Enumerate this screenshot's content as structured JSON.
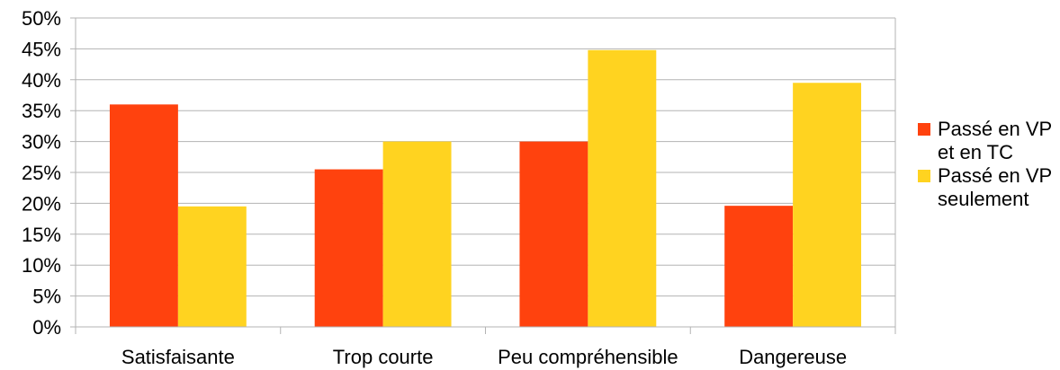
{
  "chart_data": {
    "type": "bar",
    "categories": [
      "Satisfaisante",
      "Trop courte",
      "Peu compréhensible",
      "Dangereuse"
    ],
    "series": [
      {
        "name": "Passé en VP et en TC",
        "color": "#ff420e",
        "values": [
          36,
          25.5,
          30,
          19.6
        ]
      },
      {
        "name": "Passé en VP seulement",
        "color": "#ffd320",
        "values": [
          19.5,
          30,
          44.8,
          39.5
        ]
      }
    ],
    "ylim": [
      0,
      50
    ],
    "yticks": [
      "0%",
      "5%",
      "10%",
      "15%",
      "20%",
      "25%",
      "30%",
      "35%",
      "40%",
      "45%",
      "50%"
    ],
    "grid": true,
    "legend_position": "right",
    "title": "",
    "xlabel": "",
    "ylabel": ""
  },
  "legend": [
    {
      "label": "Passé en VP et en TC",
      "color": "#ff420e"
    },
    {
      "label": "Passé en VP seulement",
      "color": "#ffd320"
    }
  ]
}
